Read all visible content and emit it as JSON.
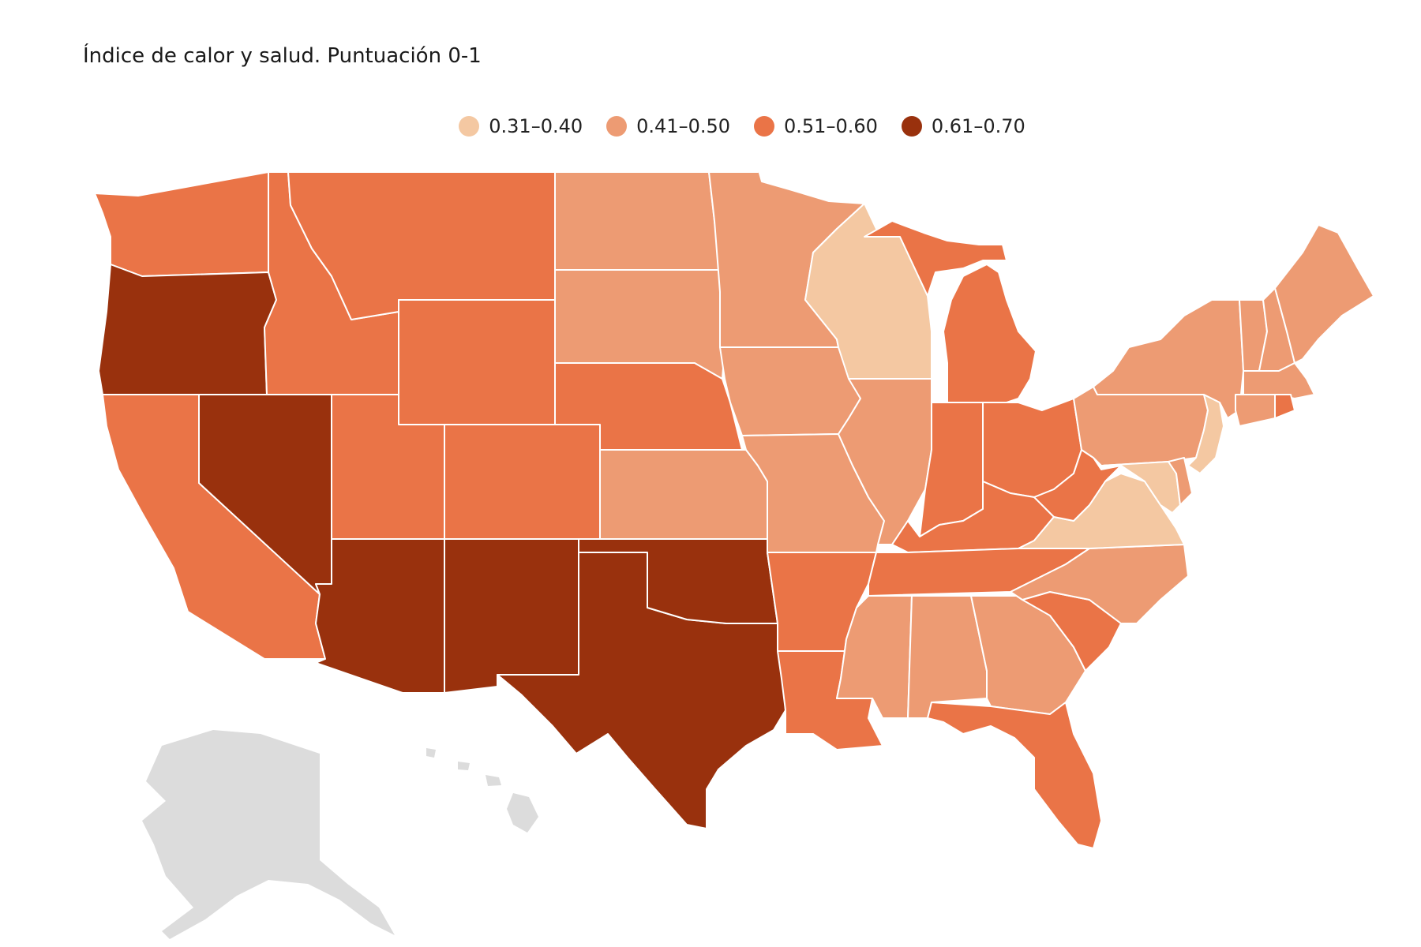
{
  "title": "Índice de calor y salud. Puntuación 0-1",
  "legend": [
    {
      "label": "0.31–0.40",
      "color": "#f4c8a2"
    },
    {
      "label": "0.41–0.50",
      "color": "#ed9b73"
    },
    {
      "label": "0.51–0.60",
      "color": "#ea7447"
    },
    {
      "label": "0.61–0.70",
      "color": "#99310d"
    }
  ],
  "colors": {
    "class1": "#f4c8a2",
    "class2": "#ed9b73",
    "class3": "#ea7447",
    "class4": "#99310d",
    "no_data": "#dcdcdc"
  },
  "states": [
    {
      "name": "Washington",
      "class": 3
    },
    {
      "name": "Oregon",
      "class": 4
    },
    {
      "name": "California",
      "class": 3
    },
    {
      "name": "Nevada",
      "class": 4
    },
    {
      "name": "Idaho",
      "class": 3
    },
    {
      "name": "Montana",
      "class": 3
    },
    {
      "name": "Wyoming",
      "class": 3
    },
    {
      "name": "Utah",
      "class": 3
    },
    {
      "name": "Colorado",
      "class": 3
    },
    {
      "name": "Arizona",
      "class": 4
    },
    {
      "name": "New Mexico",
      "class": 4
    },
    {
      "name": "Texas",
      "class": 4
    },
    {
      "name": "Oklahoma",
      "class": 4
    },
    {
      "name": "Kansas",
      "class": 2
    },
    {
      "name": "Nebraska",
      "class": 3
    },
    {
      "name": "South Dakota",
      "class": 2
    },
    {
      "name": "North Dakota",
      "class": 2
    },
    {
      "name": "Minnesota",
      "class": 2
    },
    {
      "name": "Iowa",
      "class": 2
    },
    {
      "name": "Missouri",
      "class": 2
    },
    {
      "name": "Arkansas",
      "class": 3
    },
    {
      "name": "Louisiana",
      "class": 3
    },
    {
      "name": "Wisconsin",
      "class": 1
    },
    {
      "name": "Illinois",
      "class": 2
    },
    {
      "name": "Michigan",
      "class": 3
    },
    {
      "name": "Indiana",
      "class": 3
    },
    {
      "name": "Ohio",
      "class": 3
    },
    {
      "name": "Kentucky",
      "class": 3
    },
    {
      "name": "Tennessee",
      "class": 3
    },
    {
      "name": "Mississippi",
      "class": 2
    },
    {
      "name": "Alabama",
      "class": 2
    },
    {
      "name": "Georgia",
      "class": 2
    },
    {
      "name": "Florida",
      "class": 3
    },
    {
      "name": "South Carolina",
      "class": 3
    },
    {
      "name": "North Carolina",
      "class": 2
    },
    {
      "name": "Virginia",
      "class": 1
    },
    {
      "name": "West Virginia",
      "class": 3
    },
    {
      "name": "Pennsylvania",
      "class": 2
    },
    {
      "name": "New York",
      "class": 2
    },
    {
      "name": "Vermont",
      "class": 2
    },
    {
      "name": "New Hampshire",
      "class": 2
    },
    {
      "name": "Maine",
      "class": 2
    },
    {
      "name": "Massachusetts",
      "class": 2
    },
    {
      "name": "Connecticut",
      "class": 2
    },
    {
      "name": "Rhode Island",
      "class": 3
    },
    {
      "name": "New Jersey",
      "class": 1
    },
    {
      "name": "Delaware",
      "class": 2
    },
    {
      "name": "Maryland",
      "class": 1
    },
    {
      "name": "Alaska",
      "class": 0
    },
    {
      "name": "Hawaii",
      "class": 0
    }
  ]
}
